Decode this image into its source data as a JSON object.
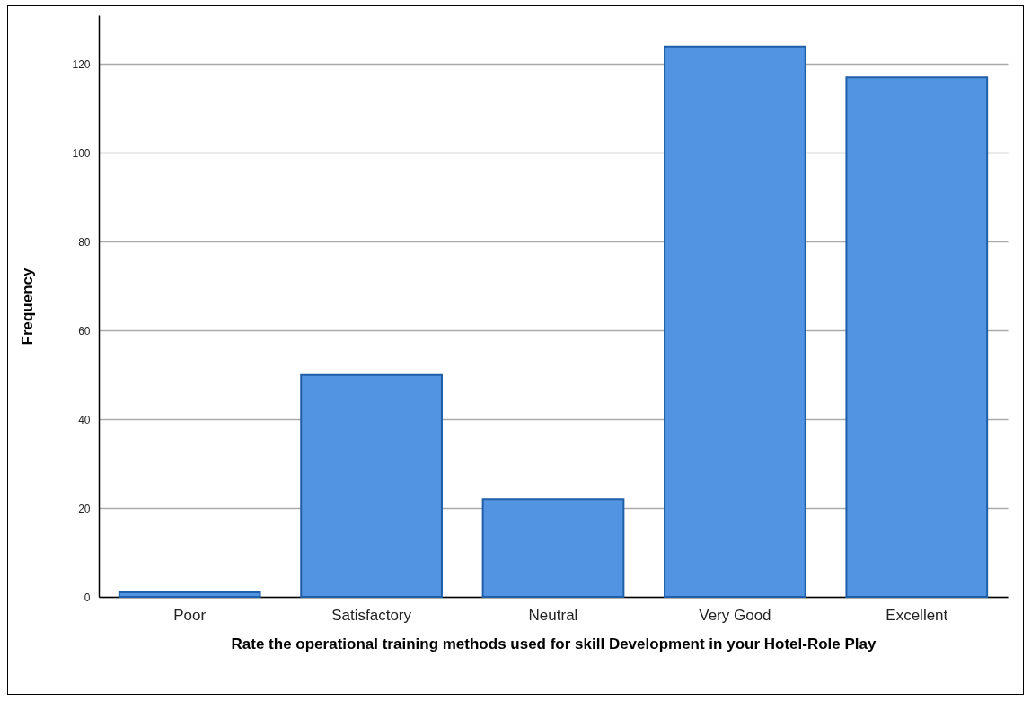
{
  "chart_data": {
    "type": "bar",
    "xlabel": "Rate the operational training methods used for skill Development in your Hotel-Role Play",
    "ylabel": "Frequency",
    "categories": [
      "Poor",
      "Satisfactory",
      "Neutral",
      "Very Good",
      "Excellent"
    ],
    "values": [
      1,
      50,
      22,
      124,
      117
    ],
    "color": "#5294e2",
    "ylim": [
      0,
      131
    ],
    "yticks": [
      0,
      20,
      40,
      60,
      80,
      100,
      120
    ],
    "grid": "y"
  }
}
